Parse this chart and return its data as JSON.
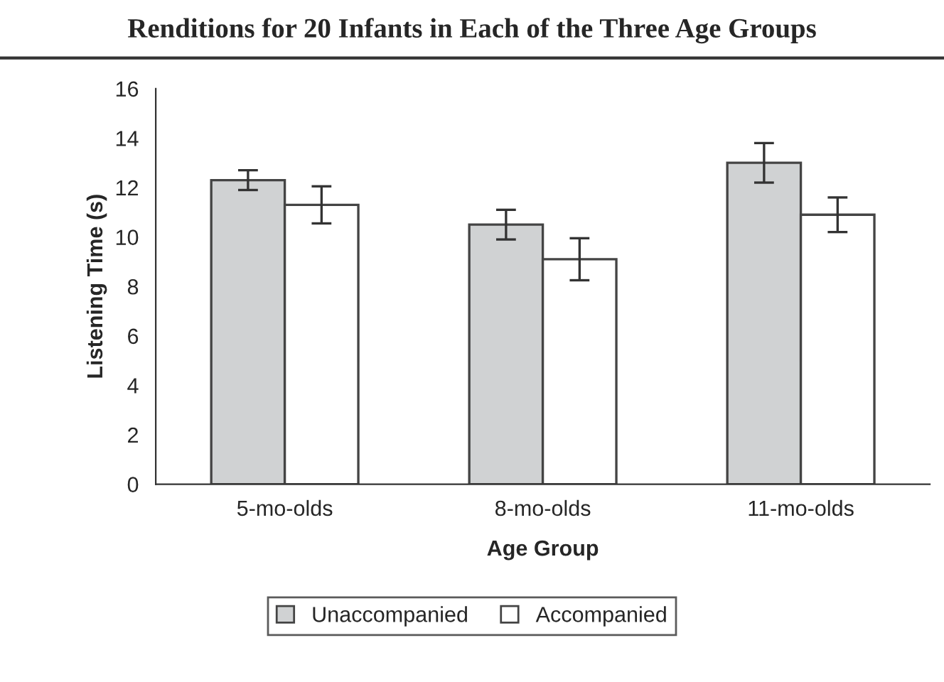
{
  "chart_data": {
    "type": "bar",
    "title": "Renditions for 20 Infants in Each of the Three Age Groups",
    "xlabel": "Age Group",
    "ylabel": "Listening Time (s)",
    "categories": [
      "5-mo-olds",
      "8-mo-olds",
      "11-mo-olds"
    ],
    "series": [
      {
        "name": "Unaccompanied",
        "color": "#d0d2d3",
        "values": [
          12.3,
          10.5,
          13.0
        ],
        "errors": [
          0.4,
          0.6,
          0.8
        ]
      },
      {
        "name": "Accompanied",
        "color": "#ffffff",
        "values": [
          11.3,
          9.1,
          10.9
        ],
        "errors": [
          0.75,
          0.85,
          0.7
        ]
      }
    ],
    "ylim": [
      0,
      16
    ],
    "yticks": [
      0,
      2,
      4,
      6,
      8,
      10,
      12,
      14,
      16
    ],
    "grid": false,
    "legend": "bottom"
  }
}
